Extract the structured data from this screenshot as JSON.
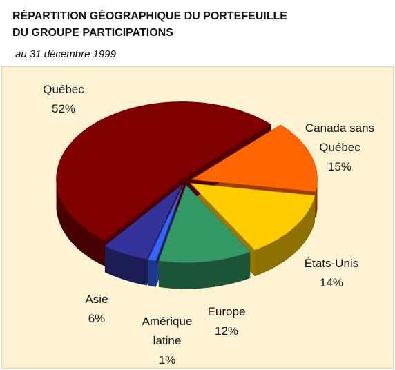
{
  "chart_data": {
    "type": "pie",
    "title": [
      "RÉPARTITION GÉOGRAPHIQUE DU PORTEFEUILLE",
      "DU GROUPE PARTICIPATIONS"
    ],
    "subtitle": "au 31 décembre 1999",
    "categories": [
      "Canada sans Québec",
      "États-Unis",
      "Europe",
      "Amérique latine",
      "Asie",
      "Québec"
    ],
    "values": [
      15,
      14,
      12,
      1,
      6,
      52
    ],
    "value_labels": [
      "15%",
      "14%",
      "12%",
      "1%",
      "6%",
      "52%"
    ],
    "colors": [
      "#ff6600",
      "#ffcc00",
      "#339966",
      "#3366ff",
      "#333399",
      "#800000"
    ]
  }
}
